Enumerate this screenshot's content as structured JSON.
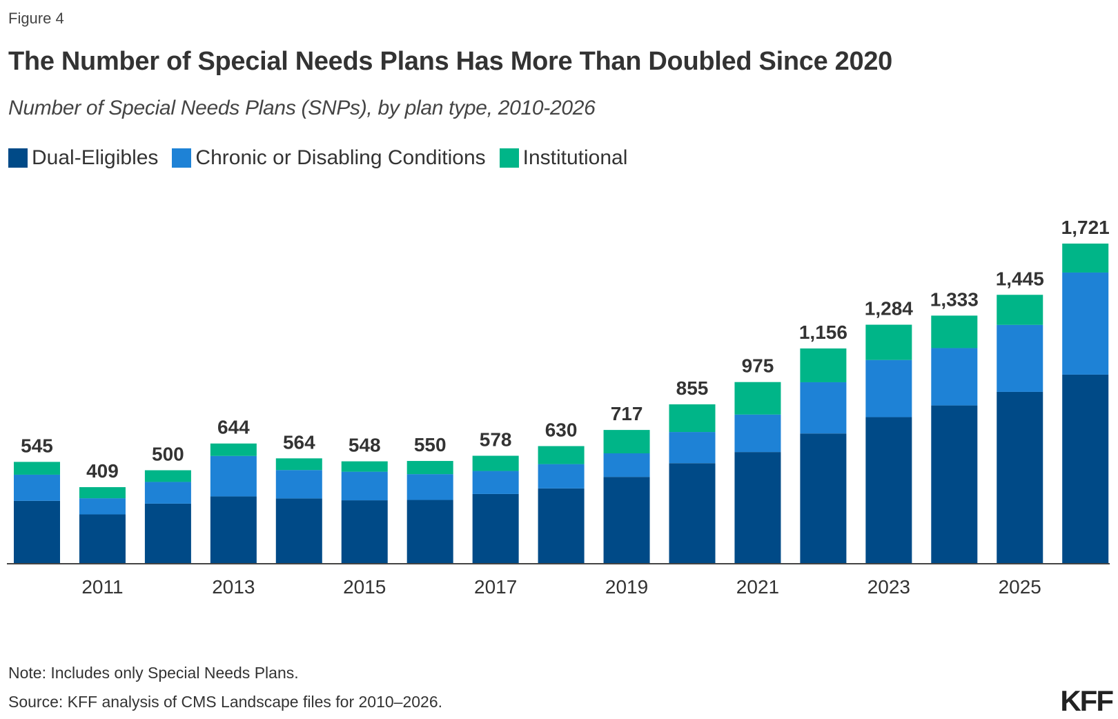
{
  "header": {
    "figure_label": "Figure 4",
    "title": "The Number of Special Needs Plans Has More Than Doubled Since 2020",
    "subtitle": "Number of Special Needs Plans (SNPs), by plan type, 2010-2026"
  },
  "legend": [
    {
      "label": "Dual-Eligibles",
      "color": "#004a87"
    },
    {
      "label": "Chronic or Disabling Conditions",
      "color": "#1e82d6"
    },
    {
      "label": "Institutional",
      "color": "#00b588"
    }
  ],
  "footer": {
    "note": "Note: Includes only Special Needs Plans.",
    "source": "Source: KFF analysis of CMS Landscape files for 2010–2026.",
    "logo": "KFF"
  },
  "chart_data": {
    "type": "bar",
    "stacked": true,
    "title": "The Number of Special Needs Plans Has More Than Doubled Since 2020",
    "subtitle": "Number of Special Needs Plans (SNPs), by plan type, 2010-2026",
    "xlabel": "",
    "ylabel": "",
    "categories": [
      "2010",
      "2011",
      "2012",
      "2013",
      "2014",
      "2015",
      "2016",
      "2017",
      "2018",
      "2019",
      "2020",
      "2021",
      "2022",
      "2023",
      "2024",
      "2025",
      "2026"
    ],
    "x_tick_labels": [
      "2011",
      "2013",
      "2015",
      "2017",
      "2019",
      "2021",
      "2023",
      "2025"
    ],
    "series": [
      {
        "name": "Dual-Eligibles",
        "color": "#004a87",
        "values": [
          335,
          262,
          320,
          359,
          348,
          338,
          340,
          372,
          402,
          464,
          538,
          598,
          698,
          786,
          849,
          922,
          1015
        ]
      },
      {
        "name": "Chronic or Disabling Conditions",
        "color": "#1e82d6",
        "values": [
          141,
          87,
          117,
          218,
          153,
          154,
          139,
          124,
          131,
          127,
          168,
          202,
          276,
          308,
          309,
          361,
          550
        ]
      },
      {
        "name": "Institutional",
        "color": "#00b588",
        "values": [
          69,
          60,
          63,
          67,
          63,
          56,
          71,
          82,
          97,
          126,
          149,
          175,
          182,
          190,
          175,
          162,
          156
        ]
      }
    ],
    "totals": [
      545,
      409,
      500,
      644,
      564,
      548,
      550,
      578,
      630,
      717,
      855,
      975,
      1156,
      1284,
      1333,
      1445,
      1721
    ],
    "total_labels": [
      "545",
      "409",
      "500",
      "644",
      "564",
      "548",
      "550",
      "578",
      "630",
      "717",
      "855",
      "975",
      "1,156",
      "1,284",
      "1,333",
      "1,445",
      "1,721"
    ],
    "ylim": [
      0,
      1721
    ],
    "grid": false,
    "legend_position": "top-left"
  }
}
